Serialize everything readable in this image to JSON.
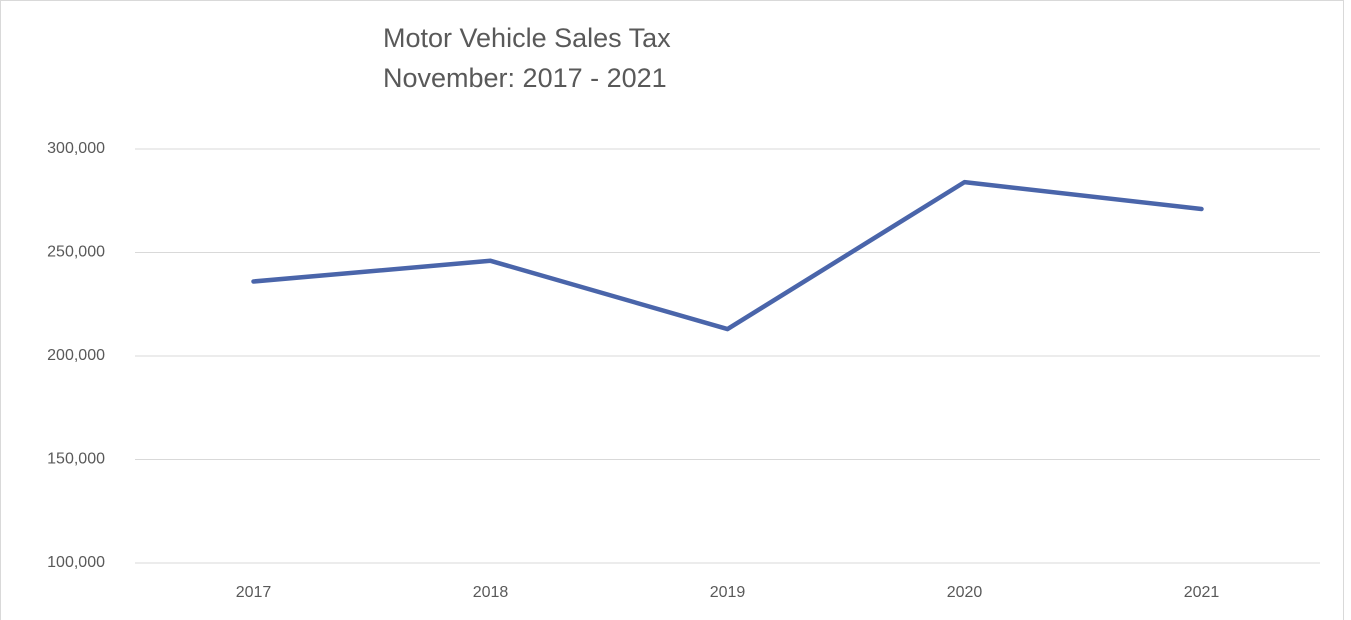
{
  "chart_data": {
    "type": "line",
    "title": "Motor Vehicle Sales Tax",
    "subtitle": "November: 2017 - 2021",
    "categories": [
      "2017",
      "2018",
      "2019",
      "2020",
      "2021"
    ],
    "values": [
      236000,
      246000,
      213000,
      284000,
      271000
    ],
    "color": "#4a65aa",
    "ylim": [
      100000,
      300000
    ],
    "yticks": [
      {
        "value": 100000,
        "label": "100,000"
      },
      {
        "value": 150000,
        "label": "150,000"
      },
      {
        "value": 200000,
        "label": "200,000"
      },
      {
        "value": 250000,
        "label": "250,000"
      },
      {
        "value": 300000,
        "label": "300,000"
      }
    ],
    "grid": true
  }
}
